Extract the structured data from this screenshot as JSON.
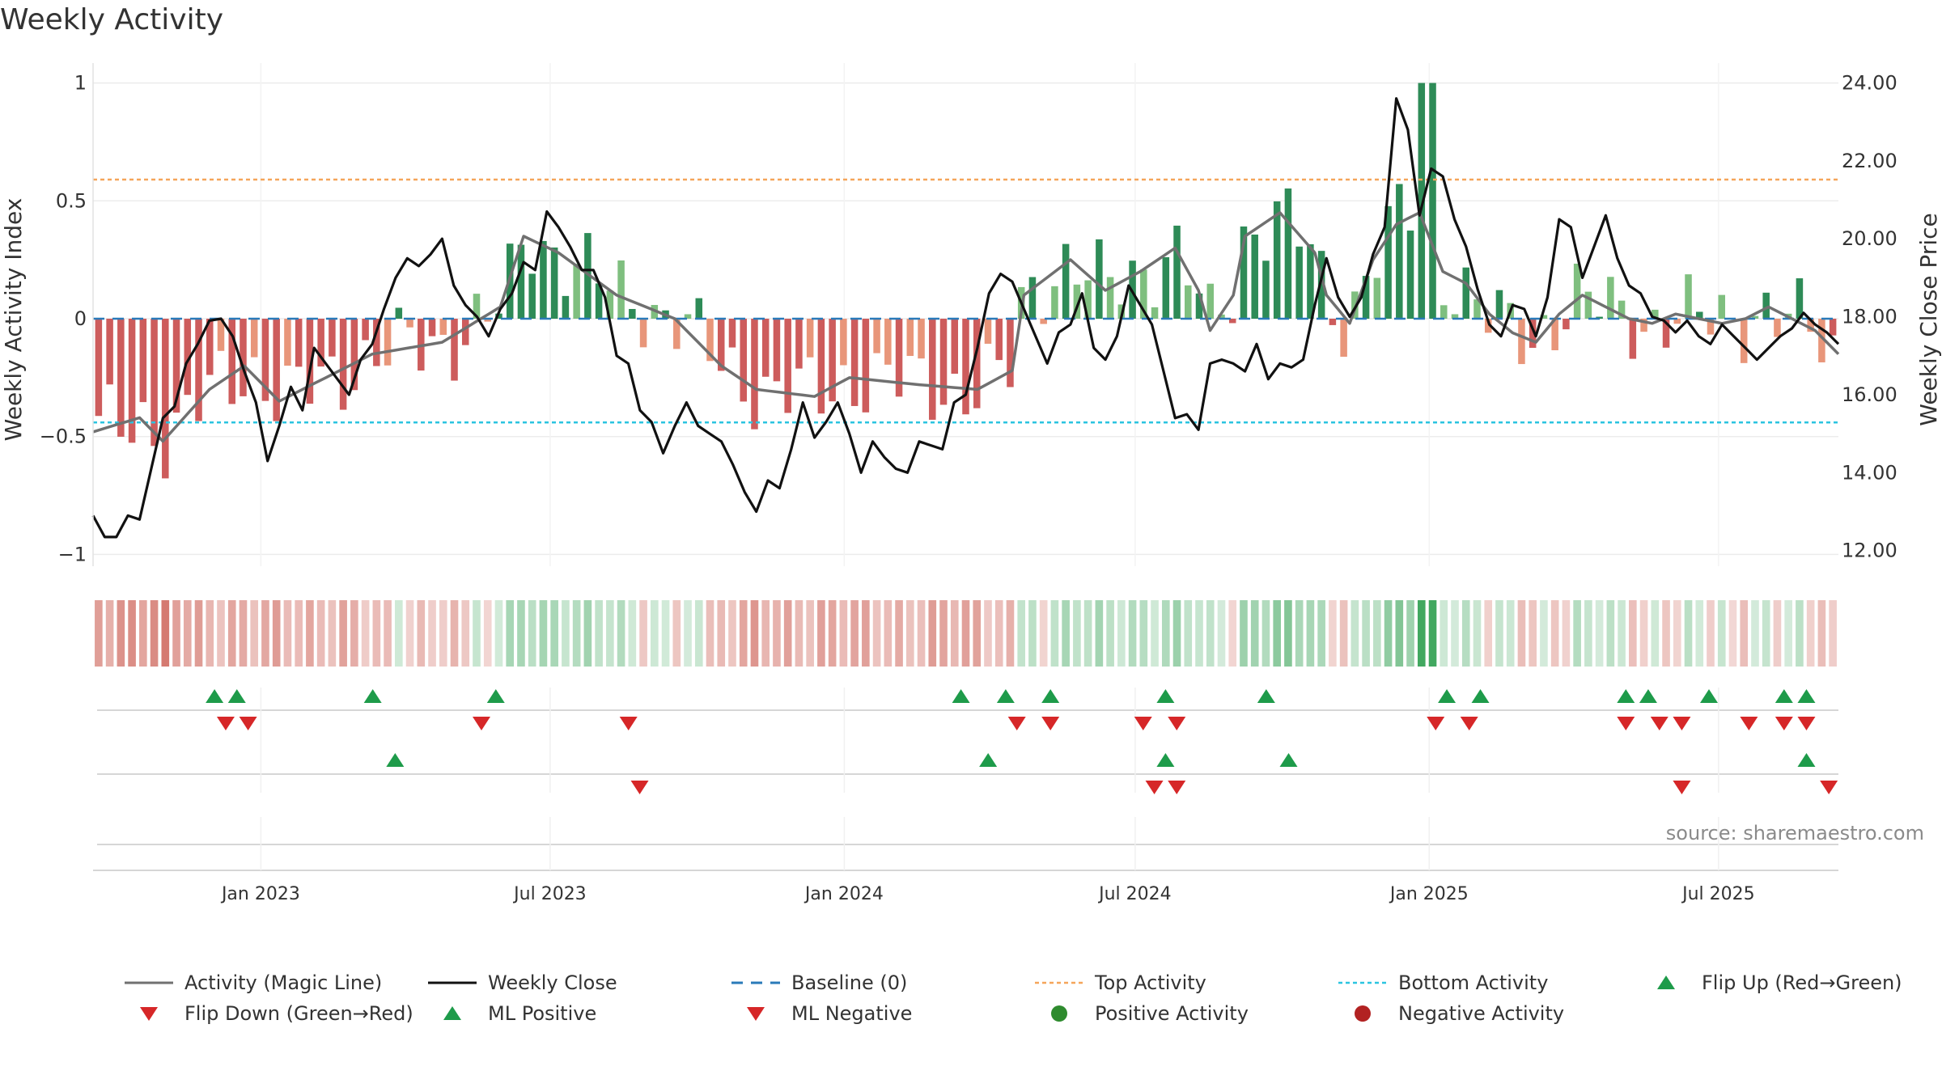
{
  "chart_data": {
    "type": "bar+line",
    "title": "Weekly Activity",
    "ylabel_left": "Weekly Activity Index",
    "ylabel_right": "Weekly Close Price",
    "left_yticks": [
      "1",
      "0.5",
      "0",
      "−0.5",
      "−1"
    ],
    "left_ytick_values": [
      1,
      0.5,
      0,
      -0.5,
      -1
    ],
    "ylim_left": [
      -1.05,
      1.05
    ],
    "right_yticks": [
      "24.00",
      "22.00",
      "20.00",
      "18.00",
      "16.00",
      "14.00",
      "12.00"
    ],
    "right_ytick_values": [
      24,
      22,
      20,
      18,
      16,
      14,
      12
    ],
    "ylim_right": [
      11.6,
      24.3
    ],
    "x_start": "2022-09-18",
    "x_end": "2025-09-14",
    "xticks": [
      {
        "date": "2023-01-01",
        "label": "Jan 2023"
      },
      {
        "date": "2023-07-01",
        "label": "Jul 2023"
      },
      {
        "date": "2024-01-01",
        "label": "Jan 2024"
      },
      {
        "date": "2024-07-01",
        "label": "Jul 2024"
      },
      {
        "date": "2025-01-01",
        "label": "Jan 2025"
      },
      {
        "date": "2025-07-01",
        "label": "Jul 2025"
      }
    ],
    "top_activity": 0.59,
    "bottom_activity": -0.44,
    "baseline": 0,
    "activity_pts": [
      [
        0,
        -0.48
      ],
      [
        8,
        -0.42
      ],
      [
        12,
        -0.52
      ],
      [
        20,
        -0.3
      ],
      [
        26,
        -0.2
      ],
      [
        32,
        -0.35
      ],
      [
        40,
        -0.25
      ],
      [
        48,
        -0.15
      ],
      [
        60,
        -0.1
      ],
      [
        70,
        0.05
      ],
      [
        74,
        0.35
      ],
      [
        80,
        0.28
      ],
      [
        90,
        0.1
      ],
      [
        100,
        0.0
      ],
      [
        104,
        -0.1
      ],
      [
        108,
        -0.2
      ],
      [
        114,
        -0.3
      ],
      [
        124,
        -0.33
      ],
      [
        130,
        -0.25
      ],
      [
        142,
        -0.28
      ],
      [
        152,
        -0.3
      ],
      [
        158,
        -0.22
      ],
      [
        160,
        0.1
      ],
      [
        168,
        0.25
      ],
      [
        174,
        0.12
      ],
      [
        180,
        0.2
      ],
      [
        186,
        0.3
      ],
      [
        190,
        0.12
      ],
      [
        192,
        -0.05
      ],
      [
        196,
        0.1
      ],
      [
        198,
        0.35
      ],
      [
        204,
        0.45
      ],
      [
        210,
        0.28
      ],
      [
        212,
        0.1
      ],
      [
        216,
        -0.02
      ],
      [
        220,
        0.25
      ],
      [
        224,
        0.4
      ],
      [
        228,
        0.45
      ],
      [
        232,
        0.2
      ],
      [
        236,
        0.15
      ],
      [
        240,
        0.02
      ],
      [
        244,
        -0.06
      ],
      [
        248,
        -0.1
      ],
      [
        252,
        0.02
      ],
      [
        256,
        0.1
      ],
      [
        260,
        0.05
      ],
      [
        264,
        0.0
      ],
      [
        268,
        -0.02
      ],
      [
        272,
        0.02
      ],
      [
        276,
        0.0
      ],
      [
        280,
        -0.02
      ],
      [
        284,
        0.0
      ],
      [
        288,
        0.05
      ],
      [
        296,
        -0.05
      ],
      [
        300,
        -0.15
      ]
    ],
    "bars_note": "one bar per week; heights generated from activity_pts",
    "close_pts": [
      [
        0,
        12.9
      ],
      [
        2,
        12.35
      ],
      [
        4,
        12.35
      ],
      [
        6,
        12.9
      ],
      [
        8,
        12.8
      ],
      [
        10,
        14.1
      ],
      [
        12,
        15.4
      ],
      [
        14,
        15.7
      ],
      [
        16,
        16.8
      ],
      [
        18,
        17.3
      ],
      [
        20,
        17.9
      ],
      [
        22,
        17.95
      ],
      [
        24,
        17.5
      ],
      [
        26,
        16.6
      ],
      [
        28,
        15.8
      ],
      [
        30,
        14.3
      ],
      [
        32,
        15.2
      ],
      [
        34,
        16.2
      ],
      [
        36,
        15.6
      ],
      [
        38,
        17.2
      ],
      [
        40,
        16.8
      ],
      [
        42,
        16.4
      ],
      [
        44,
        16.0
      ],
      [
        46,
        16.9
      ],
      [
        48,
        17.3
      ],
      [
        50,
        18.2
      ],
      [
        52,
        19.0
      ],
      [
        54,
        19.5
      ],
      [
        56,
        19.3
      ],
      [
        58,
        19.6
      ],
      [
        60,
        20.0
      ],
      [
        62,
        18.8
      ],
      [
        64,
        18.3
      ],
      [
        66,
        18.0
      ],
      [
        68,
        17.5
      ],
      [
        70,
        18.2
      ],
      [
        72,
        18.6
      ],
      [
        74,
        19.4
      ],
      [
        76,
        19.2
      ],
      [
        78,
        20.7
      ],
      [
        80,
        20.3
      ],
      [
        82,
        19.8
      ],
      [
        84,
        19.2
      ],
      [
        86,
        19.2
      ],
      [
        88,
        18.5
      ],
      [
        90,
        17.0
      ],
      [
        92,
        16.8
      ],
      [
        94,
        15.6
      ],
      [
        96,
        15.3
      ],
      [
        98,
        14.5
      ],
      [
        100,
        15.2
      ],
      [
        102,
        15.8
      ],
      [
        104,
        15.2
      ],
      [
        106,
        15.0
      ],
      [
        108,
        14.8
      ],
      [
        110,
        14.2
      ],
      [
        112,
        13.5
      ],
      [
        114,
        13.0
      ],
      [
        116,
        13.8
      ],
      [
        118,
        13.6
      ],
      [
        120,
        14.6
      ],
      [
        122,
        15.8
      ],
      [
        124,
        14.9
      ],
      [
        126,
        15.3
      ],
      [
        128,
        15.8
      ],
      [
        130,
        15.0
      ],
      [
        132,
        14.0
      ],
      [
        134,
        14.8
      ],
      [
        136,
        14.4
      ],
      [
        138,
        14.1
      ],
      [
        140,
        14.0
      ],
      [
        142,
        14.8
      ],
      [
        144,
        14.7
      ],
      [
        146,
        14.6
      ],
      [
        148,
        15.8
      ],
      [
        150,
        16.0
      ],
      [
        152,
        17.2
      ],
      [
        154,
        18.6
      ],
      [
        156,
        19.1
      ],
      [
        158,
        18.9
      ],
      [
        160,
        18.2
      ],
      [
        162,
        17.5
      ],
      [
        164,
        16.8
      ],
      [
        166,
        17.6
      ],
      [
        168,
        17.8
      ],
      [
        170,
        18.6
      ],
      [
        172,
        17.2
      ],
      [
        174,
        16.9
      ],
      [
        176,
        17.5
      ],
      [
        178,
        18.8
      ],
      [
        180,
        18.3
      ],
      [
        182,
        17.8
      ],
      [
        184,
        16.6
      ],
      [
        186,
        15.4
      ],
      [
        188,
        15.5
      ],
      [
        190,
        15.1
      ],
      [
        192,
        16.8
      ],
      [
        194,
        16.9
      ],
      [
        196,
        16.8
      ],
      [
        198,
        16.6
      ],
      [
        200,
        17.3
      ],
      [
        202,
        16.4
      ],
      [
        204,
        16.8
      ],
      [
        206,
        16.7
      ],
      [
        208,
        16.9
      ],
      [
        210,
        18.3
      ],
      [
        212,
        19.5
      ],
      [
        214,
        18.5
      ],
      [
        216,
        18.0
      ],
      [
        218,
        18.5
      ],
      [
        220,
        19.6
      ],
      [
        222,
        20.3
      ],
      [
        224,
        23.6
      ],
      [
        226,
        22.8
      ],
      [
        228,
        20.6
      ],
      [
        230,
        21.8
      ],
      [
        232,
        21.6
      ],
      [
        234,
        20.5
      ],
      [
        236,
        19.8
      ],
      [
        238,
        18.7
      ],
      [
        240,
        17.8
      ],
      [
        242,
        17.5
      ],
      [
        244,
        18.3
      ],
      [
        246,
        18.2
      ],
      [
        248,
        17.5
      ],
      [
        250,
        18.5
      ],
      [
        252,
        20.5
      ],
      [
        254,
        20.3
      ],
      [
        256,
        19.0
      ],
      [
        258,
        19.8
      ],
      [
        260,
        20.6
      ],
      [
        262,
        19.5
      ],
      [
        264,
        18.8
      ],
      [
        266,
        18.6
      ],
      [
        268,
        18.0
      ],
      [
        270,
        17.9
      ],
      [
        272,
        17.6
      ],
      [
        274,
        17.9
      ],
      [
        276,
        17.5
      ],
      [
        278,
        17.3
      ],
      [
        280,
        17.8
      ],
      [
        282,
        17.5
      ],
      [
        284,
        17.2
      ],
      [
        286,
        16.9
      ],
      [
        288,
        17.2
      ],
      [
        290,
        17.5
      ],
      [
        292,
        17.7
      ],
      [
        294,
        18.1
      ],
      [
        296,
        17.8
      ],
      [
        298,
        17.6
      ],
      [
        300,
        17.3
      ]
    ],
    "signal_rows": [
      {
        "name": "flip-up",
        "marker": "up",
        "color": "#1e9b4a",
        "dates": [
          "2022-12-03",
          "2022-12-17",
          "2023-03-12",
          "2023-05-28",
          "2024-03-14",
          "2024-04-11",
          "2024-05-09",
          "2024-07-20",
          "2024-09-21",
          "2025-01-12",
          "2025-02-02",
          "2025-05-04",
          "2025-05-18",
          "2025-06-25",
          "2025-08-11",
          "2025-08-25"
        ]
      },
      {
        "name": "flip-down",
        "marker": "down",
        "color": "#d62728",
        "dates": [
          "2022-12-10",
          "2022-12-24",
          "2023-05-19",
          "2023-08-19",
          "2024-04-18",
          "2024-05-09",
          "2024-07-06",
          "2024-07-27",
          "2025-01-05",
          "2025-01-26",
          "2025-05-04",
          "2025-05-25",
          "2025-06-08",
          "2025-07-20",
          "2025-08-11",
          "2025-08-25"
        ]
      },
      {
        "name": "ml-positive",
        "marker": "up",
        "color": "#1e9b4a",
        "dates": [
          "2023-03-26",
          "2024-03-31",
          "2024-07-20",
          "2024-10-05",
          "2025-08-25"
        ]
      },
      {
        "name": "ml-negative",
        "marker": "down",
        "color": "#d62728",
        "dates": [
          "2023-08-26",
          "2024-07-13",
          "2024-07-27",
          "2025-06-08",
          "2025-09-08"
        ]
      }
    ],
    "source": "source: sharemaestro.com"
  },
  "legend": [
    {
      "label": "Activity (Magic Line)",
      "kind": "line",
      "color": "#707070"
    },
    {
      "label": "Weekly Close",
      "kind": "line",
      "color": "#111111"
    },
    {
      "label": "Baseline (0)",
      "kind": "dashed",
      "color": "#2a7ab9"
    },
    {
      "label": "Top Activity",
      "kind": "dotted",
      "color": "#f5a55a"
    },
    {
      "label": "Bottom Activity",
      "kind": "dotted",
      "color": "#2bc4e0"
    },
    {
      "label": "Flip Up (Red→Green)",
      "kind": "up",
      "color": "#1e9b4a"
    },
    {
      "label": "Flip Down (Green→Red)",
      "kind": "down",
      "color": "#d62728"
    },
    {
      "label": "ML Positive",
      "kind": "up",
      "color": "#1e9b4a"
    },
    {
      "label": "ML Negative",
      "kind": "down",
      "color": "#d62728"
    },
    {
      "label": "Positive Activity",
      "kind": "dot",
      "color": "#2e8b2e"
    },
    {
      "label": "Negative Activity",
      "kind": "dot",
      "color": "#b22222"
    }
  ]
}
